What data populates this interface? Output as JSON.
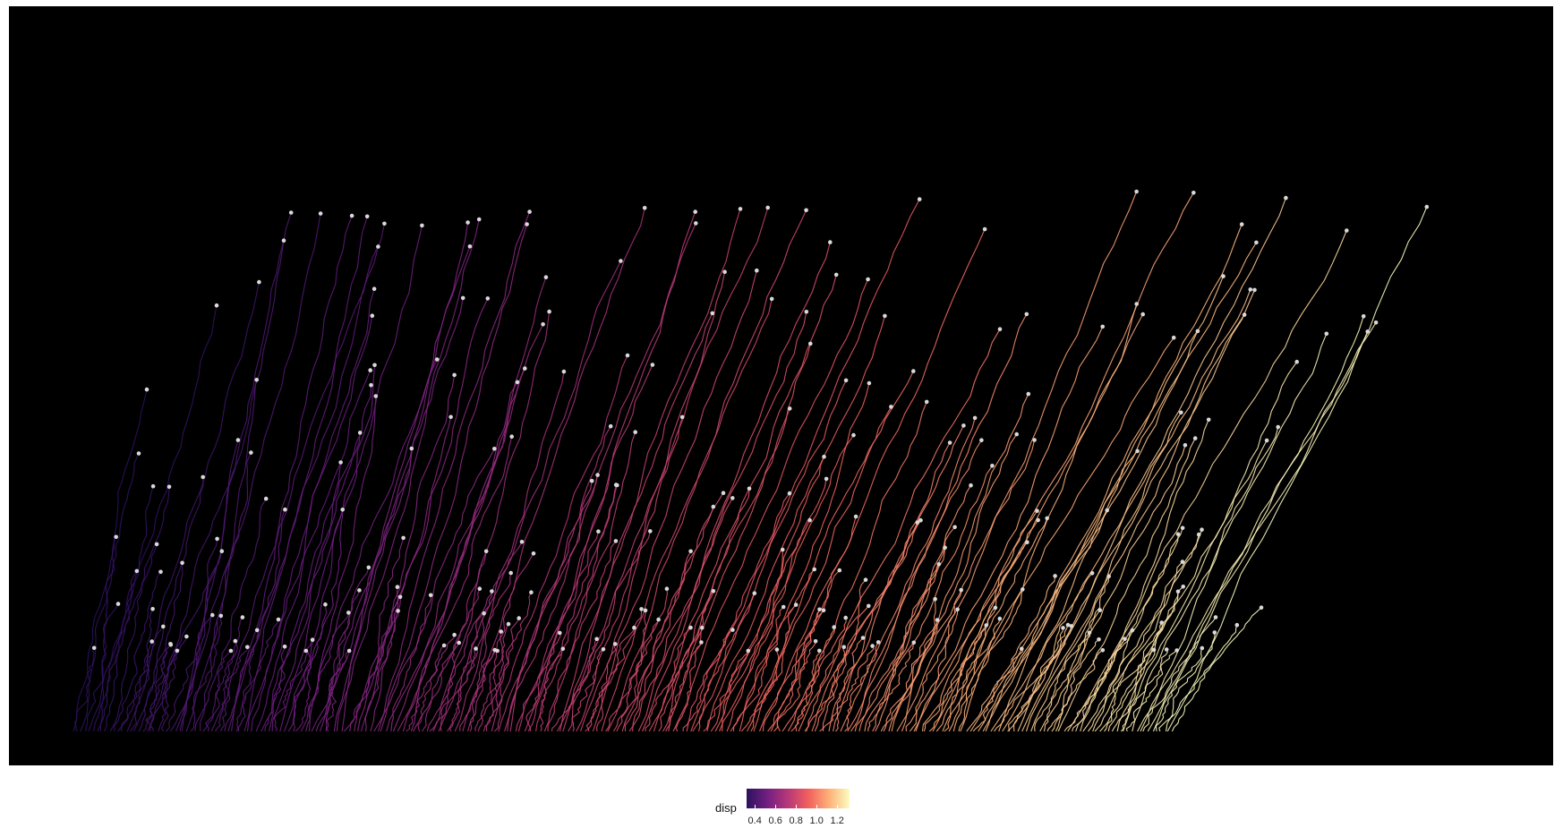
{
  "chart_data": {
    "type": "line",
    "description_of_encoding": "",
    "series_count": 272,
    "color_variable": "disp",
    "color_scale": "magma",
    "color_range": [
      0.32,
      1.32
    ],
    "legend": {
      "title": "disp",
      "ticks": [
        "0.4",
        "0.6",
        "0.8",
        "1.0",
        "1.2"
      ],
      "placement": "bottom-center"
    },
    "background": "#000000",
    "grid": false,
    "axes_visible": false,
    "colors": {
      "low": "#3b0f70",
      "mid": "#de4968",
      "high": "#fcfdbf",
      "endpoint": "#d9d9d9"
    }
  }
}
